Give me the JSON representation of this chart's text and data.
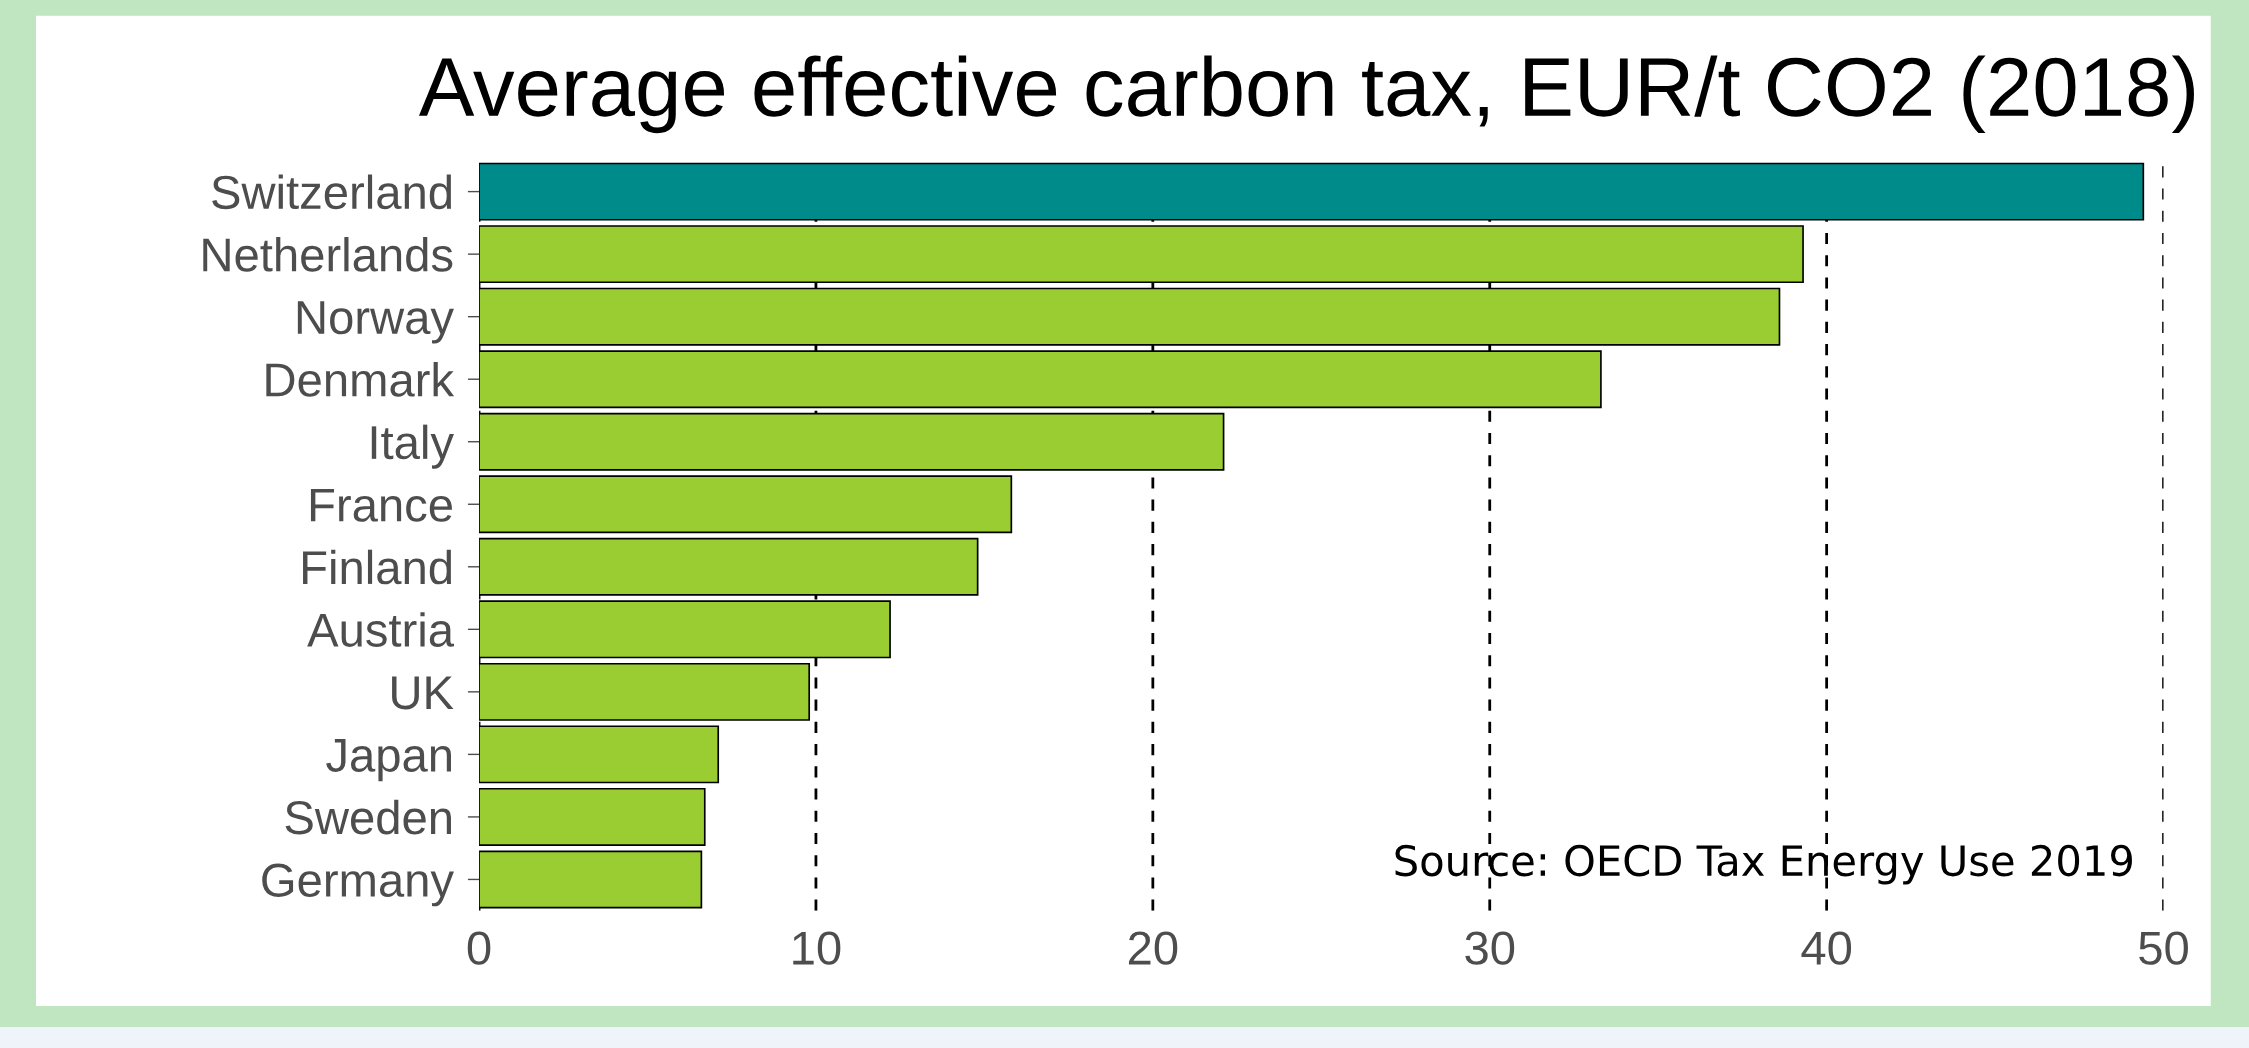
{
  "chart_data": {
    "type": "bar",
    "orientation": "horizontal",
    "title": "Average effective carbon tax, EUR/t CO2 (2018)",
    "categories": [
      "Switzerland",
      "Netherlands",
      "Norway",
      "Denmark",
      "Italy",
      "France",
      "Finland",
      "Austria",
      "UK",
      "Japan",
      "Sweden",
      "Germany"
    ],
    "values": [
      49.4,
      39.3,
      38.6,
      33.3,
      22.1,
      15.8,
      14.8,
      12.2,
      9.8,
      7.1,
      6.7,
      6.6
    ],
    "colors": [
      "#008b8b",
      "#9acd32",
      "#9acd32",
      "#9acd32",
      "#9acd32",
      "#9acd32",
      "#9acd32",
      "#9acd32",
      "#9acd32",
      "#9acd32",
      "#9acd32",
      "#9acd32"
    ],
    "xlim": [
      0,
      50
    ],
    "xticks": [
      0,
      10,
      20,
      30,
      40,
      50
    ],
    "grid": "x",
    "annotations": [
      "Source: OECD Tax Energy Use 2019"
    ]
  }
}
